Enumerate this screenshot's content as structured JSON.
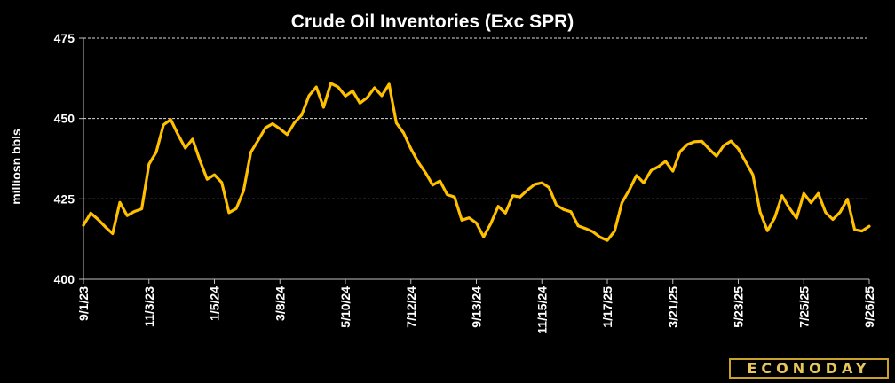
{
  "chart_data": {
    "type": "line",
    "title": "Crude Oil Inventories (Exc SPR)",
    "ylabel": "milliosn bbls",
    "xlabel": "",
    "ylim": [
      400,
      475
    ],
    "yticks": [
      400,
      425,
      450,
      475
    ],
    "grid": true,
    "x_tick_labels": [
      "9/1/23",
      "11/3/23",
      "1/5/24",
      "3/8/24",
      "5/10/24",
      "7/12/24",
      "9/13/24",
      "11/15/24",
      "1/17/25",
      "3/21/25",
      "5/23/25",
      "7/25/25",
      "9/26/25"
    ],
    "series": [
      {
        "color": "#ffc000",
        "values": [
          416.8,
          420.6,
          418.6,
          416.3,
          414.2,
          423.9,
          419.8,
          421.1,
          421.9,
          435.8,
          439.5,
          448.0,
          449.7,
          445.0,
          440.8,
          443.6,
          437.0,
          431.1,
          432.5,
          430.1,
          420.7,
          422.0,
          427.5,
          439.5,
          443.2,
          447.1,
          448.4,
          446.8,
          445.0,
          448.7,
          451.1,
          457.1,
          459.8,
          453.5,
          460.9,
          459.8,
          457.0,
          458.6,
          454.8,
          456.5,
          459.6,
          457.1,
          460.7,
          448.6,
          445.5,
          440.6,
          436.5,
          433.2,
          429.3,
          430.6,
          426.3,
          425.6,
          418.4,
          419.1,
          417.5,
          413.2,
          417.4,
          422.7,
          420.6,
          426.0,
          425.6,
          427.7,
          429.5,
          430.0,
          428.5,
          423.1,
          421.7,
          421.0,
          416.6,
          415.8,
          414.8,
          413.1,
          412.1,
          415.0,
          423.8,
          427.7,
          432.3,
          430.0,
          433.8,
          435.0,
          436.7,
          433.6,
          439.7,
          441.9,
          442.8,
          442.9,
          440.5,
          438.3,
          441.6,
          443.0,
          440.6,
          436.6,
          432.5,
          420.9,
          415.1,
          419.1,
          426.0,
          422.2,
          419.0,
          426.7,
          423.8,
          426.7,
          420.8,
          418.6,
          420.9,
          424.9,
          415.4,
          415.0,
          416.5
        ]
      }
    ]
  },
  "logo_text": "ECONODAY"
}
